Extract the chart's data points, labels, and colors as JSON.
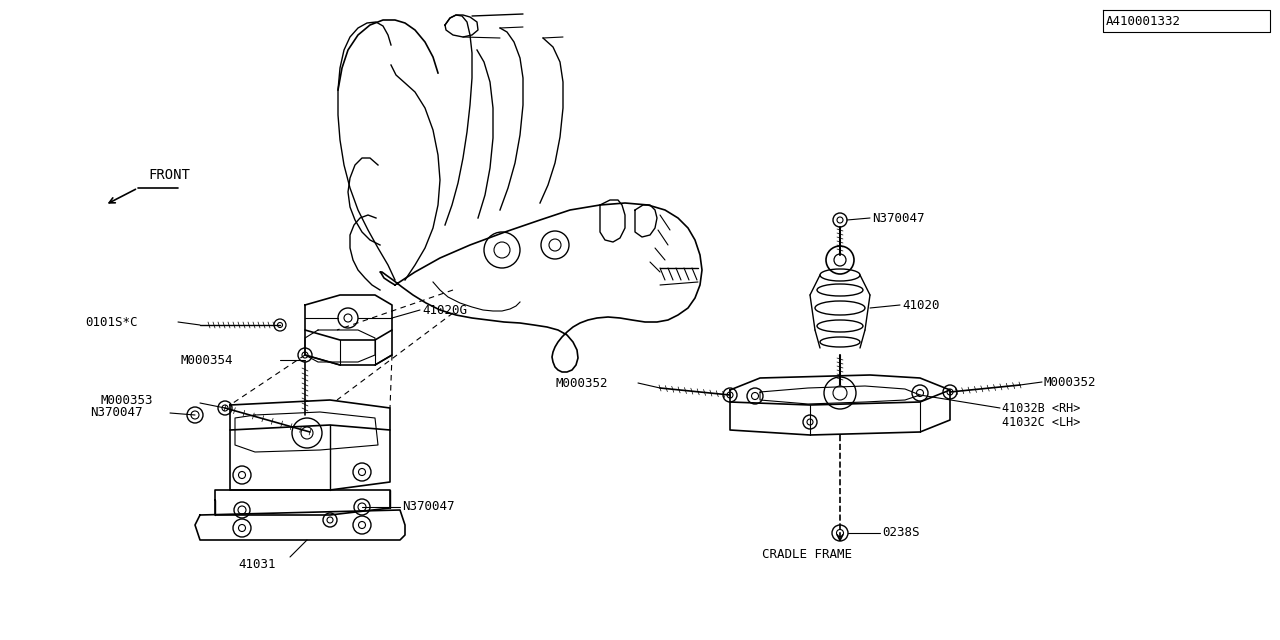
{
  "bg_color": "#ffffff",
  "line_color": "#000000",
  "part_number_ref": "A410001332",
  "font": "monospace",
  "labels": {
    "front": "FRONT",
    "cradle_frame": "CRADLE FRAME"
  },
  "parts": {
    "41020G": "41020G",
    "41020": "41020",
    "41031": "41031",
    "41032B": "41032B <RH>",
    "41032C": "41032C <LH>",
    "N370047": "N370047",
    "M000352": "M000352",
    "M000354": "M000354",
    "M000353": "M000353",
    "0101SC": "0101S*C",
    "0238S": "0238S"
  }
}
